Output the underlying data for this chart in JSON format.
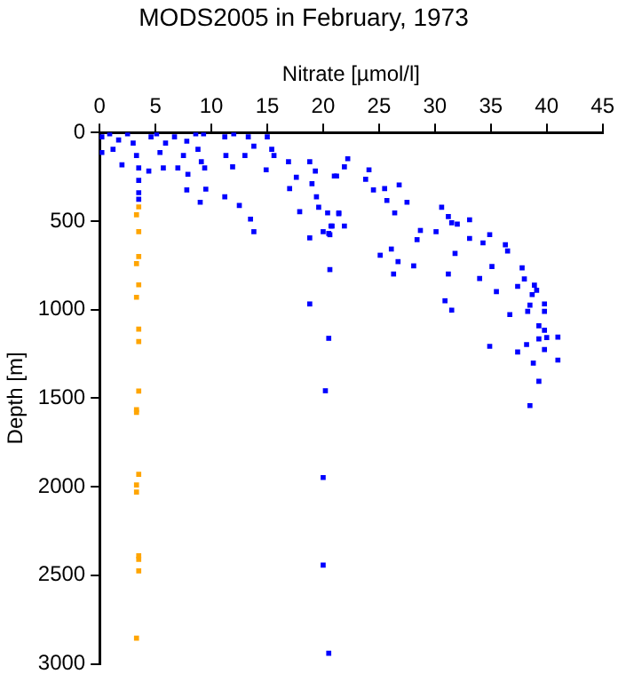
{
  "chart_data": {
    "type": "scatter",
    "title": "MODS2005 in February, 1973",
    "xlabel": "Nitrate [µmol/l]",
    "ylabel": "Depth [m]",
    "xlim": [
      0,
      45
    ],
    "xticks": [
      0,
      5,
      10,
      15,
      20,
      25,
      30,
      35,
      40,
      45
    ],
    "ylim": [
      3000,
      0
    ],
    "yticks": [
      0,
      500,
      1000,
      1500,
      2000,
      2500,
      3000
    ],
    "grid": false,
    "legend": false,
    "marker": "square",
    "series": [
      {
        "color": "#0000ff",
        "x": [
          0.2,
          0.9,
          1.7,
          2.5,
          3,
          0.2,
          1.2,
          2,
          3.3,
          3.5,
          3.5,
          3.5,
          3.5,
          4.4,
          4.6,
          5.1,
          5.4,
          5.7,
          5.9,
          6.7,
          7,
          7.5,
          7.8,
          7.9,
          7.8,
          8.6,
          8.8,
          9.1,
          9,
          9.4,
          9.5,
          9.3,
          11.2,
          11.3,
          11.2,
          11.9,
          12,
          12.5,
          13,
          13.3,
          13.5,
          13.8,
          13.8,
          15,
          15.4,
          15.6,
          14.9,
          16.9,
          17,
          17.6,
          17.9,
          18.8,
          18.8,
          18.8,
          19,
          19.3,
          19.4,
          19.6,
          20.4,
          20.6,
          20.5,
          20.8,
          20.5,
          21.2,
          21.4,
          21.9,
          22.2,
          21.9,
          21,
          24.1,
          23.8,
          24.5,
          25.5,
          26.8,
          25.7,
          27.5,
          26.4,
          21.4,
          20.7,
          20,
          20.6,
          30.6,
          31.2,
          31.5,
          32,
          33.1,
          28.7,
          28.4,
          30.1,
          26.1,
          26.7,
          25.1,
          28.1,
          26.3,
          31.8,
          33.1,
          34.3,
          34.9,
          36.3,
          36.5,
          35.1,
          34,
          31.2,
          35.5,
          37.8,
          38,
          37.4,
          38.9,
          39.1,
          38.7,
          38.5,
          38.3,
          39.8,
          39.8,
          36.7,
          30.9,
          31.5,
          39.3,
          39.8,
          40,
          39.3,
          41,
          38.2,
          39.8,
          37.4,
          34.9,
          38.8,
          41,
          39.3,
          38.5,
          20.2,
          20,
          20,
          20.5
        ],
        "values": [
          25,
          7,
          42,
          7,
          60,
          113,
          95,
          183,
          130,
          200,
          270,
          340,
          377,
          218,
          25,
          7,
          113,
          200,
          60,
          25,
          200,
          130,
          49,
          236,
          324,
          7,
          95,
          165,
          394,
          200,
          320,
          7,
          25,
          130,
          363,
          194,
          7,
          412,
          130,
          25,
          489,
          560,
          77,
          25,
          95,
          130,
          211,
          165,
          317,
          253,
          447,
          165,
          595,
          968,
          289,
          218,
          363,
          422,
          454,
          774,
          1162,
          528,
          570,
          246,
          454,
          528,
          148,
          194,
          246,
          211,
          264,
          324,
          317,
          296,
          384,
          394,
          454,
          458,
          528,
          560,
          577,
          422,
          475,
          510,
          517,
          493,
          553,
          605,
          560,
          658,
          729,
          693,
          753,
          799,
          683,
          598,
          623,
          577,
          634,
          669,
          757,
          824,
          799,
          898,
          764,
          827,
          869,
          862,
          891,
          915,
          975,
          1010,
          968,
          1010,
          1028,
          950,
          1003,
          1091,
          1116,
          1158,
          1165,
          1155,
          1197,
          1225,
          1239,
          1207,
          1302,
          1285,
          1405,
          1542,
          1458,
          1948,
          2442,
          2940
        ]
      },
      {
        "color": "#ffa500",
        "x": [
          3.5,
          3.3,
          3.5,
          3.5,
          3.3,
          3.5,
          3.3,
          3.5,
          3.5,
          3.5,
          3.3,
          3.3,
          3.5,
          3.3,
          3.3,
          3.5,
          3.5,
          3.5,
          3.3
        ],
        "values": [
          420,
          465,
          560,
          700,
          740,
          860,
          930,
          1110,
          1180,
          1460,
          1565,
          1580,
          1930,
          1990,
          2030,
          2390,
          2410,
          2475,
          2855
        ]
      }
    ]
  }
}
